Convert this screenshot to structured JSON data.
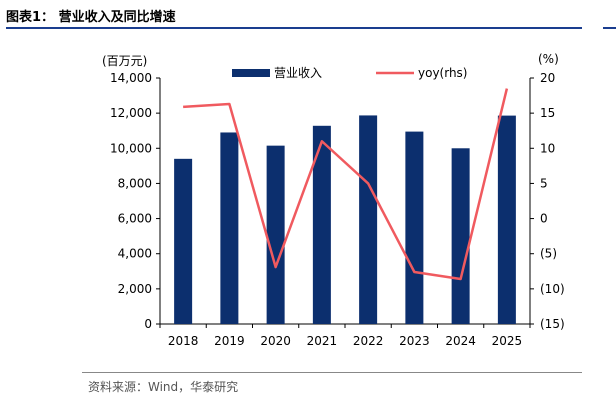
{
  "figure": {
    "title": "图表1：  营业收入及同比增速",
    "source": "资料来源：Wind，华泰研究"
  },
  "chart_data": {
    "type": "bar",
    "categories": [
      "2018",
      "2019",
      "2020",
      "2021",
      "2022",
      "2023",
      "2024",
      "2025"
    ],
    "series": [
      {
        "name": "营业收入",
        "type": "bar",
        "axis": "left",
        "values": [
          9400,
          10900,
          10150,
          11280,
          11870,
          10950,
          10000,
          11860
        ]
      },
      {
        "name": "yoy(rhs)",
        "type": "line",
        "axis": "right",
        "values": [
          15.9,
          16.3,
          -6.9,
          11.0,
          5.0,
          -7.6,
          -8.6,
          18.5
        ]
      }
    ],
    "left_axis": {
      "unit": "(百万元)",
      "min": 0,
      "max": 14000,
      "step": 2000,
      "ticks": [
        "0",
        "2,000",
        "4,000",
        "6,000",
        "8,000",
        "10,000",
        "12,000",
        "14,000"
      ]
    },
    "right_axis": {
      "unit": "(%)",
      "min": -15,
      "max": 20,
      "step": 5,
      "ticks": [
        "(15)",
        "(10)",
        "(5)",
        "0",
        "5",
        "10",
        "15",
        "20"
      ]
    },
    "legend_position": "top",
    "grid": false,
    "colors": {
      "bar": "#0c2f6e",
      "line": "#f05a5f",
      "axis": "#000000"
    }
  }
}
